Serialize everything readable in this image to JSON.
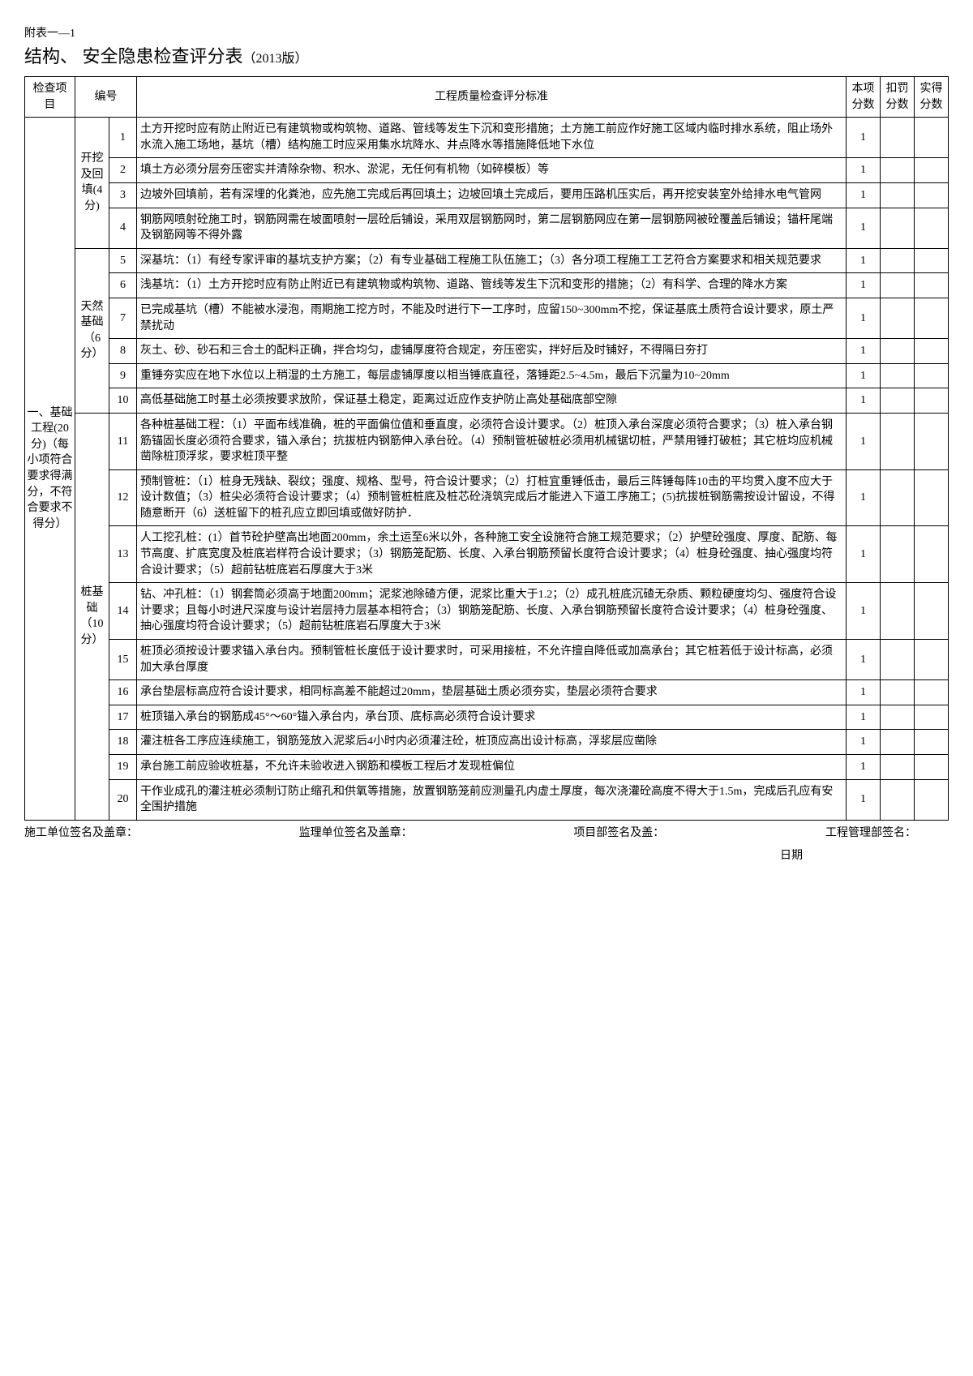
{
  "header": {
    "attachment": "附表一—1",
    "title_main": "结构、 安全隐患检查评分表",
    "title_version": "（2013版）"
  },
  "columns": {
    "cat": "检查项目",
    "num": "编号",
    "criteria": "工程质量检查评分标准",
    "base_score": "本项分数",
    "deduct_score": "扣罚分数",
    "actual_score": "实得分数"
  },
  "category": {
    "label": "一、基础工程(20分)（每小项符合要求得满分，不符合要求不得分）"
  },
  "subcategories": [
    {
      "label": "开挖及回填(4分)",
      "rows": 4
    },
    {
      "label": "天然基础（6分）",
      "rows": 6
    },
    {
      "label": "桩基础（10分）",
      "rows": 10
    }
  ],
  "rows": [
    {
      "n": "1",
      "text": "土方开挖时应有防止附近已有建筑物或构筑物、道路、管线等发生下沉和变形措施；土方施工前应作好施工区域内临时排水系统，阻止场外水流入施工场地，基坑（槽）结构施工时应采用集水坑降水、井点降水等措施降低地下水位",
      "score": "1"
    },
    {
      "n": "2",
      "text": "填土方必须分层夯压密实并清除杂物、积水、淤泥，无任何有机物（如碎模板）等",
      "score": "1"
    },
    {
      "n": "3",
      "text": "边坡外回填前，若有深埋的化粪池，应先施工完成后再回填土；边坡回填土完成后，要用压路机压实后，再开挖安装室外给排水电气管网",
      "score": "1"
    },
    {
      "n": "4",
      "text": "钢筋网喷射砼施工时，钢筋网需在坡面喷射一层砼后铺设，采用双层钢筋网时，第二层钢筋网应在第一层钢筋网被砼覆盖后铺设；锚杆尾端及钢筋网等不得外露",
      "score": "1"
    },
    {
      "n": "5",
      "text": "深基坑：（1）有经专家评审的基坑支护方案；（2）有专业基础工程施工队伍施工；（3）各分项工程施工工艺符合方案要求和相关规范要求",
      "score": "1"
    },
    {
      "n": "6",
      "text": "浅基坑：（1）土方开挖时应有防止附近已有建筑物或构筑物、道路、管线等发生下沉和变形的措施；（2）有科学、合理的降水方案",
      "score": "1"
    },
    {
      "n": "7",
      "text": "已完成基坑（槽）不能被水浸泡，雨期施工挖方时，不能及时进行下一工序时，应留150~300mm不挖，保证基底土质符合设计要求，原土严禁扰动",
      "score": "1"
    },
    {
      "n": "8",
      "text": "灰土、砂、砂石和三合土的配料正确，拌合均匀，虚铺厚度符合规定，夯压密实，拌好后及时铺好，不得隔日夯打",
      "score": "1"
    },
    {
      "n": "9",
      "text": "重锤夯实应在地下水位以上稍湿的土方施工，每层虚铺厚度以相当锤底直径，落锤距2.5~4.5m，最后下沉量为10~20mm",
      "score": "1"
    },
    {
      "n": "10",
      "text": "高低基础施工时基土必须按要求放阶，保证基土稳定，距离过近应作支护防止高处基础底部空隙",
      "score": "1"
    },
    {
      "n": "11",
      "text": "各种桩基础工程：（1）平面布线准确，桩的平面偏位值和垂直度，必须符合设计要求。（2）桩顶入承台深度必须符合要求；（3）桩入承台钢筋锚固长度必须符合要求，锚入承台；抗拔桩内钢筋伸入承台砼。（4）预制管桩破桩必须用机械锯切桩，严禁用锤打破桩；其它桩均应机械凿除桩顶浮浆，要求桩顶平整",
      "score": "1"
    },
    {
      "n": "12",
      "text": "预制管桩：（1）桩身无残缺、裂纹；强度、规格、型号，符合设计要求；（2）打桩宜重锤低击，最后三阵锤每阵10击的平均贯入度不应大于设计数值；（3）桩尖必须符合设计要求；（4）预制管桩桩底及桩芯砼浇筑完成后才能进入下道工序施工；(5)抗拔桩钢筋需按设计留设，不得随意断开（6）送桩留下的桩孔应立即回填或做好防护．",
      "score": "1"
    },
    {
      "n": "13",
      "text": "人工挖孔桩：(1）首节砼护壁高出地面200mm，余土运至6米以外，各种施工安全设施符合施工规范要求；（2）护壁砼强度、厚度、配筋、每节高度、扩底宽度及桩底岩样符合设计要求；（3）钢筋笼配筋、长度、入承台钢筋预留长度符合设计要求；（4）桩身砼强度、抽心强度均符合设计要求；（5）超前钻桩底岩石厚度大于3米",
      "score": "1"
    },
    {
      "n": "14",
      "text": "钻、冲孔桩：（1）钢套筒必须高于地面200mm；泥浆池除碴方便，泥浆比重大于1.2；（2）成孔桩底沉碴无杂质、颗粒硬度均匀、强度符合设计要求；且每小时进尺深度与设计岩层持力层基本相符合；（3）钢筋笼配筋、长度、入承台钢筋预留长度符合设计要求；（4）桩身砼强度、抽心强度均符合设计要求；（5）超前钻桩底岩石厚度大于3米",
      "score": "1"
    },
    {
      "n": "15",
      "text": "桩顶必须按设计要求锚入承台内。预制管桩长度低于设计要求时，可采用接桩，不允许擅自降低或加高承台；其它桩若低于设计标高，必须加大承台厚度",
      "score": "1"
    },
    {
      "n": "16",
      "text": "承台垫层标高应符合设计要求，相同标高差不能超过20mm，垫层基础土质必须夯实，垫层必须符合要求",
      "score": "1"
    },
    {
      "n": "17",
      "text": "桩顶锚入承台的钢筋成45°～60°锚入承台内，承台顶、底标高必须符合设计要求",
      "score": "1"
    },
    {
      "n": "18",
      "text": "灌注桩各工序应连续施工，钢筋笼放入泥浆后4小时内必须灌注砼，桩顶应高出设计标高，浮浆层应凿除",
      "score": "1"
    },
    {
      "n": "19",
      "text": "承台施工前应验收桩基，不允许未验收进入钢筋和模板工程后才发现桩偏位",
      "score": "1"
    },
    {
      "n": "20",
      "text": "干作业成孔的灌注桩必须制订防止缩孔和供氧等措施，放置钢筋笼前应测量孔内虚土厚度，每次浇灌砼高度不得大于1.5m，完成后孔应有安全围护措施",
      "score": "1"
    }
  ],
  "footer": {
    "sig1": "施工单位签名及盖章：",
    "sig2": "监理单位签名及盖章：",
    "sig3": "项目部签名及盖：",
    "sig4": "工程管理部签名：",
    "date": "日期"
  }
}
